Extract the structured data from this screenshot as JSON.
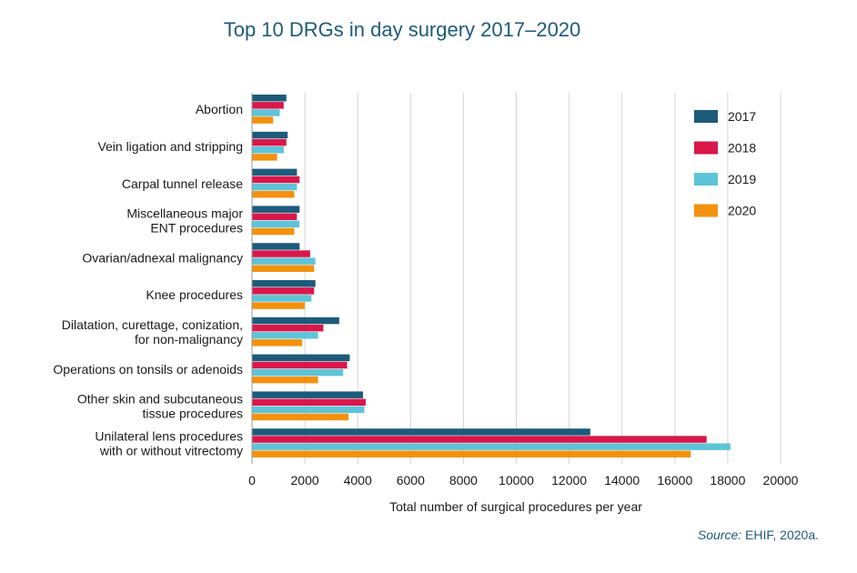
{
  "chart_data": {
    "type": "bar",
    "orientation": "horizontal",
    "title": "Top 10 DRGs in day surgery 2017–2020",
    "xlabel": "Total number of surgical procedures per year",
    "ylabel": "",
    "xlim": [
      0,
      20000
    ],
    "xticks": [
      0,
      2000,
      4000,
      6000,
      8000,
      10000,
      12000,
      14000,
      16000,
      18000,
      20000
    ],
    "xtick_labels": [
      "0",
      "2000",
      "4000",
      "6000",
      "8000",
      "10000",
      "12000",
      "14000",
      "16000",
      "18000",
      "20000"
    ],
    "grid": "vertical",
    "legend_position": "right",
    "categories": [
      "Abortion",
      "Vein ligation and stripping",
      "Carpal tunnel release",
      "Miscellaneous major\nENT procedures",
      "Ovarian/adnexal malignancy",
      "Knee procedures",
      "Dilatation, curettage, conization,\nfor non-malignancy",
      "Operations on tonsils or adenoids",
      "Other skin and subcutaneous\ntissue procedures",
      "Unilateral lens procedures\nwith or without vitrectomy"
    ],
    "series": [
      {
        "name": "2017",
        "color": "#1d5b7a",
        "values": [
          1300,
          1350,
          1700,
          1800,
          1800,
          2400,
          3300,
          3700,
          4200,
          12800
        ]
      },
      {
        "name": "2018",
        "color": "#d9174b",
        "values": [
          1200,
          1300,
          1800,
          1700,
          2200,
          2350,
          2700,
          3600,
          4300,
          17200
        ]
      },
      {
        "name": "2019",
        "color": "#5ec4d8",
        "values": [
          1050,
          1200,
          1700,
          1800,
          2400,
          2250,
          2500,
          3450,
          4250,
          18100
        ]
      },
      {
        "name": "2020",
        "color": "#f3920f",
        "values": [
          800,
          950,
          1600,
          1600,
          2350,
          2000,
          1900,
          2500,
          3650,
          16600
        ]
      }
    ]
  },
  "source": {
    "label": "Source:",
    "text": " EHIF, 2020a."
  }
}
